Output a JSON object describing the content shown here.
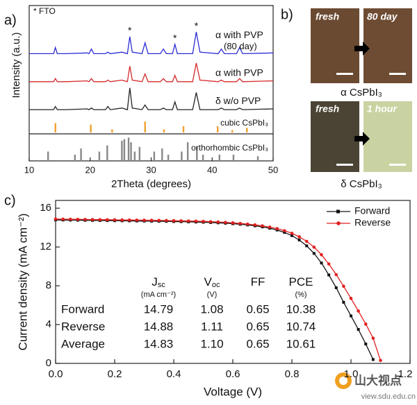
{
  "chart_data": [
    {
      "type": "line",
      "panel": "a)",
      "xlabel": "2Theta (degrees)",
      "ylabel": "Intensity (a.u.)",
      "xlim": [
        10,
        50
      ],
      "xticks": [
        10,
        20,
        30,
        40,
        50
      ],
      "ylim": [
        0,
        100
      ],
      "legend_note": "* FTO",
      "asterisks": {
        "text": "*",
        "x": [
          26.5,
          33.9,
          37.4
        ]
      },
      "x": [
        10,
        14,
        14.3,
        14.6,
        16,
        19.5,
        19.8,
        20.2,
        20.6,
        22.5,
        22.9,
        23.3,
        25.2,
        26.1,
        26.5,
        26.9,
        28.5,
        29,
        29.5,
        31.5,
        32,
        32.5,
        33.5,
        33.9,
        34.3,
        36.8,
        37.4,
        38,
        41,
        41.5,
        42,
        44,
        44.5,
        45,
        50
      ],
      "series": [
        {
          "name": "α  with PVP",
          "sublabel": "(80 day)",
          "color": "#2b2bd6",
          "values": [
            69,
            69,
            73,
            69,
            69,
            69.5,
            69,
            72,
            69,
            69,
            70,
            69,
            70,
            69,
            80,
            70,
            69,
            76,
            69,
            69,
            72,
            69,
            69,
            75,
            69,
            69,
            83,
            70,
            69,
            72,
            69,
            69,
            73,
            69,
            69.5
          ]
        },
        {
          "name": "α  with PVP",
          "color": "#d42a2a",
          "values": [
            51,
            51,
            53,
            51,
            51,
            51.5,
            51,
            53,
            51,
            51,
            52,
            51,
            52,
            51,
            61,
            52,
            51,
            56,
            51,
            51,
            53,
            51,
            51,
            55,
            51,
            51,
            63,
            52,
            51,
            52,
            51,
            51,
            53,
            51,
            51.5
          ]
        },
        {
          "name": "δ  w/o PVP",
          "color": "#222222",
          "values": [
            33,
            33,
            35,
            33,
            33,
            33.5,
            33,
            34,
            33,
            33,
            35,
            33,
            34,
            33,
            47,
            34,
            33,
            36,
            33,
            33,
            34,
            33,
            33,
            38,
            33,
            33,
            44,
            33,
            33,
            34,
            33,
            33,
            34,
            33,
            33.5
          ]
        }
      ],
      "reference_patterns": [
        {
          "name": "cubic CsPbI₃",
          "color": "#f0a030",
          "positions": [
            14.3,
            20.1,
            23.6,
            29.0,
            32.1,
            35.3,
            40.9,
            43.3,
            45.7
          ],
          "values": [
            6,
            5,
            2,
            7,
            2,
            4,
            4,
            1.5,
            3
          ]
        },
        {
          "name": "orthorhombic CsPbI₃",
          "color": "#888888",
          "positions": [
            13.1,
            17.5,
            18.5,
            21.5,
            22.8,
            25.2,
            25.6,
            26.3,
            26.7,
            27.3,
            28.1,
            30.5,
            31.8,
            32.8,
            35.0,
            36.0,
            37.5,
            38.5,
            41.2,
            43.5,
            47.5
          ],
          "values": [
            6,
            4,
            8,
            6,
            10,
            13,
            14,
            15,
            12,
            6,
            9,
            6,
            8,
            4,
            6,
            12,
            9,
            4,
            4,
            4,
            3
          ]
        }
      ]
    },
    {
      "type": "line",
      "panel": "c)",
      "xlabel": "Voltage (V)",
      "ylabel": "Current density (mA cm⁻²)",
      "xlim": [
        0,
        1.2
      ],
      "xticks": [
        {
          "value": 0,
          "label": "0.0"
        },
        0.2,
        0.4,
        0.6,
        0.8,
        {
          "value": 1,
          "label": "1.0"
        },
        1.2
      ],
      "ylim": [
        0,
        16.8
      ],
      "yticks": [
        0,
        4,
        8,
        12,
        16
      ],
      "legend": "top-right",
      "series": [
        {
          "name": "Forward",
          "color": "#111111",
          "marker": "square",
          "x": [
            0,
            0.025,
            0.05,
            0.075,
            0.1,
            0.125,
            0.15,
            0.175,
            0.2,
            0.225,
            0.25,
            0.275,
            0.3,
            0.325,
            0.35,
            0.375,
            0.4,
            0.425,
            0.45,
            0.475,
            0.5,
            0.525,
            0.55,
            0.575,
            0.6,
            0.625,
            0.65,
            0.675,
            0.7,
            0.725,
            0.75,
            0.775,
            0.8,
            0.825,
            0.85,
            0.875,
            0.9,
            0.925,
            0.95,
            0.975,
            1.0,
            1.025,
            1.05,
            1.075
          ],
          "values": [
            14.79,
            14.78,
            14.77,
            14.76,
            14.75,
            14.74,
            14.73,
            14.72,
            14.71,
            14.7,
            14.69,
            14.68,
            14.67,
            14.66,
            14.65,
            14.64,
            14.62,
            14.61,
            14.59,
            14.57,
            14.55,
            14.52,
            14.49,
            14.45,
            14.4,
            14.34,
            14.27,
            14.18,
            14.07,
            13.93,
            13.75,
            13.5,
            13.17,
            12.72,
            12.12,
            11.34,
            10.35,
            9.12,
            7.8,
            6.3,
            4.9,
            3.5,
            2.0,
            0.4
          ]
        },
        {
          "name": "Reverse",
          "color": "#e02020",
          "marker": "circle",
          "x": [
            0,
            0.025,
            0.05,
            0.075,
            0.1,
            0.125,
            0.15,
            0.175,
            0.2,
            0.225,
            0.25,
            0.275,
            0.3,
            0.325,
            0.35,
            0.375,
            0.4,
            0.425,
            0.45,
            0.475,
            0.5,
            0.525,
            0.55,
            0.575,
            0.6,
            0.625,
            0.65,
            0.675,
            0.7,
            0.725,
            0.75,
            0.775,
            0.8,
            0.825,
            0.85,
            0.875,
            0.9,
            0.925,
            0.95,
            0.975,
            1.0,
            1.025,
            1.05,
            1.075,
            1.1
          ],
          "values": [
            14.88,
            14.87,
            14.86,
            14.85,
            14.84,
            14.83,
            14.82,
            14.81,
            14.8,
            14.79,
            14.78,
            14.77,
            14.76,
            14.75,
            14.74,
            14.73,
            14.71,
            14.7,
            14.68,
            14.66,
            14.64,
            14.61,
            14.58,
            14.54,
            14.49,
            14.43,
            14.36,
            14.28,
            14.18,
            14.05,
            13.89,
            13.68,
            13.41,
            13.05,
            12.58,
            11.98,
            11.2,
            10.25,
            9.15,
            7.95,
            6.7,
            5.4,
            4.05,
            2.6,
            0.3
          ]
        }
      ],
      "table": {
        "columns": [
          {
            "symbol": "J",
            "subscript": "sc",
            "unit": "(mA cm⁻²)"
          },
          {
            "symbol": "V",
            "subscript": "oc",
            "unit": "(V)"
          },
          {
            "symbol": "FF"
          },
          {
            "symbol": "PCE",
            "unit": "(%)"
          }
        ],
        "rows": [
          [
            "Forward",
            "14.79",
            "1.08",
            "0.65",
            "10.38"
          ],
          [
            "Reverse",
            "14.88",
            "1.11",
            "0.65",
            "10.74"
          ],
          [
            "Average",
            "14.83",
            "1.10",
            "0.65",
            "10.61"
          ]
        ]
      }
    }
  ],
  "photos": {
    "panel": "b)",
    "alpha": {
      "before": "fresh",
      "after": "80 day",
      "caption": "α CsPbI₃"
    },
    "delta": {
      "before": "fresh",
      "after": "1 hour",
      "caption": "δ CsPbI₃"
    }
  },
  "watermark": {
    "name": "山大视点",
    "url": "view.sdu.edu.cn"
  }
}
